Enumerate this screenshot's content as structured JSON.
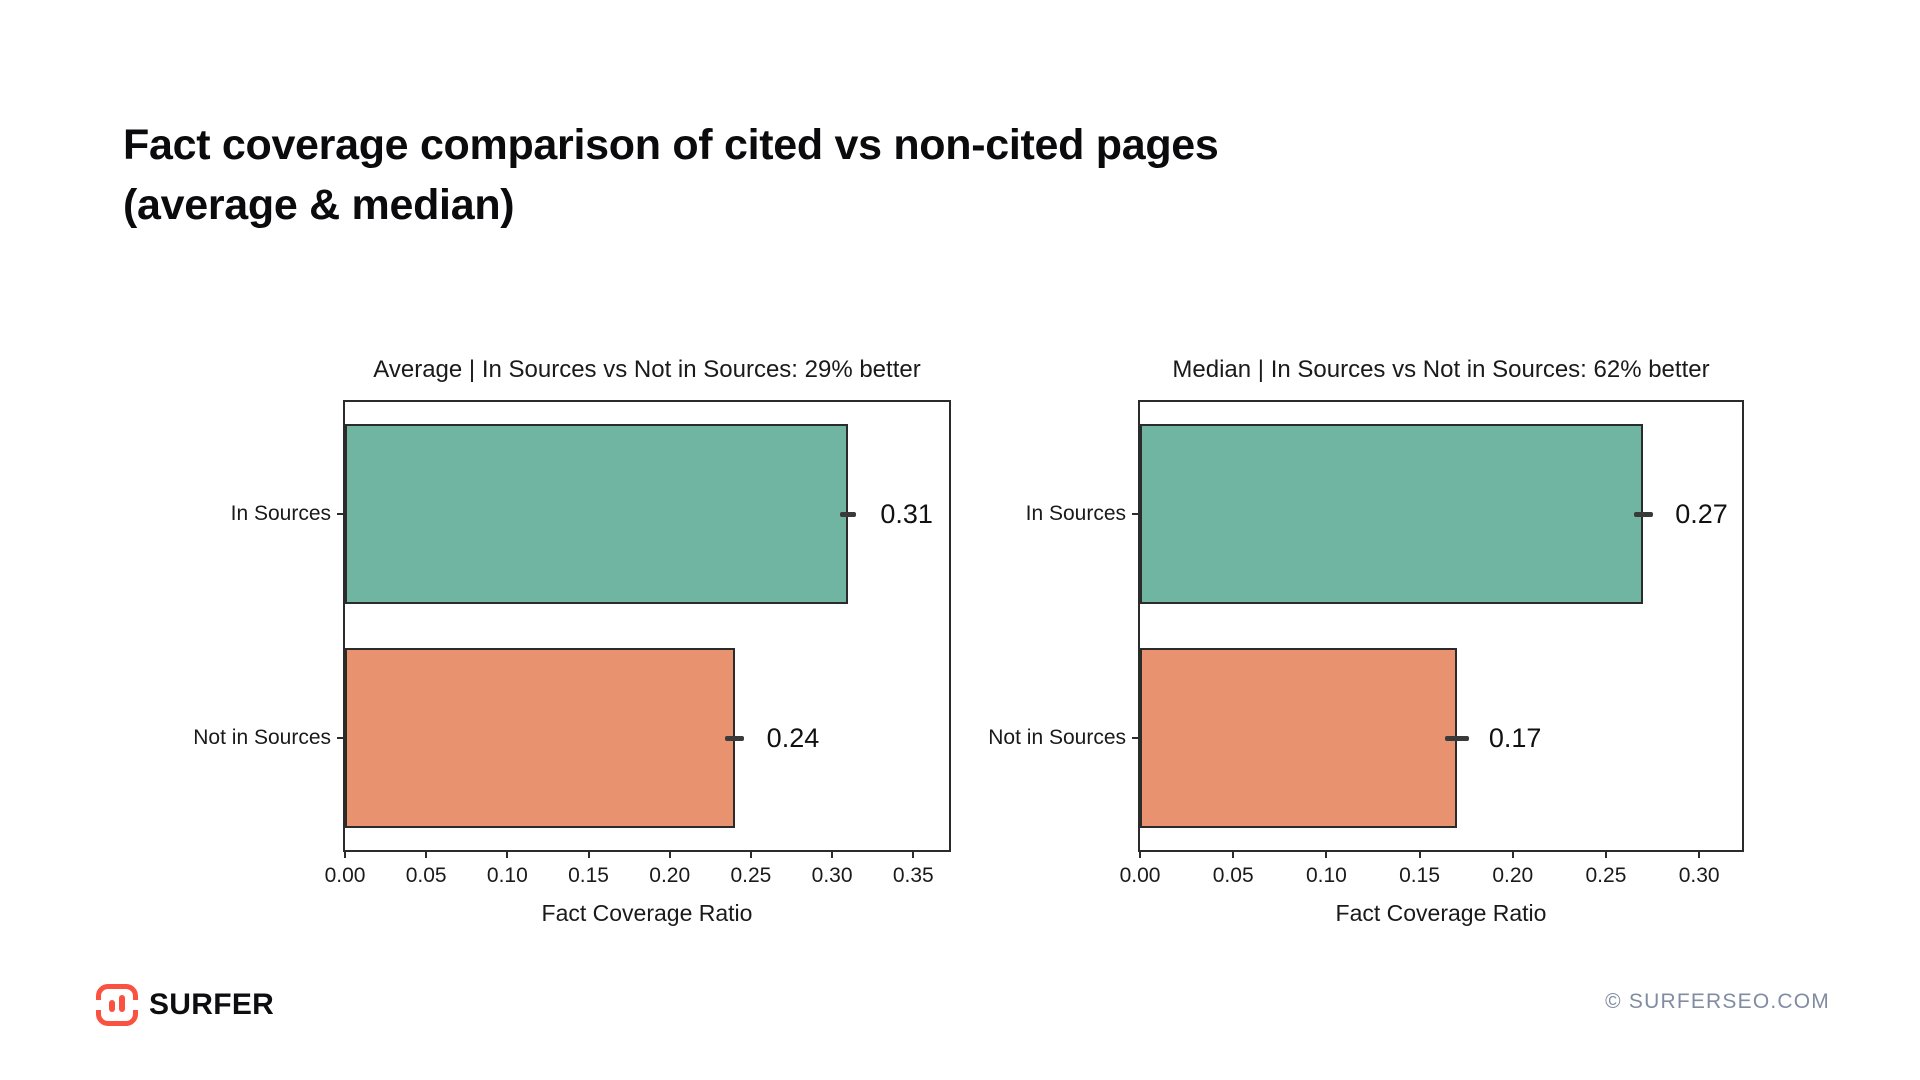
{
  "page": {
    "title_line1": "Fact coverage comparison of cited vs non-cited pages",
    "title_line2": "(average & median)"
  },
  "chart_data": [
    {
      "type": "bar",
      "orientation": "horizontal",
      "title": "Average | In Sources vs Not in Sources: 29% better",
      "categories": [
        "In Sources",
        "Not in Sources"
      ],
      "values": [
        0.31,
        0.24
      ],
      "errors": [
        0.005,
        0.006
      ],
      "value_labels": [
        "0.31",
        "0.24"
      ],
      "bar_colors": [
        "#70B5A2",
        "#E89270"
      ],
      "xlabel": "Fact Coverage Ratio",
      "xlim": [
        0,
        0.372
      ],
      "xticks": [
        0.0,
        0.05,
        0.1,
        0.15,
        0.2,
        0.25,
        0.3,
        0.35
      ],
      "xtick_labels": [
        "0.00",
        "0.05",
        "0.10",
        "0.15",
        "0.20",
        "0.25",
        "0.30",
        "0.35"
      ],
      "grid": false,
      "legend": false
    },
    {
      "type": "bar",
      "orientation": "horizontal",
      "title": "Median | In Sources vs Not in Sources: 62% better",
      "categories": [
        "In Sources",
        "Not in Sources"
      ],
      "values": [
        0.27,
        0.17
      ],
      "errors": [
        0.005,
        0.0065
      ],
      "value_labels": [
        "0.27",
        "0.17"
      ],
      "bar_colors": [
        "#70B5A2",
        "#E89270"
      ],
      "xlabel": "Fact Coverage Ratio",
      "xlim": [
        0,
        0.323
      ],
      "xticks": [
        0.0,
        0.05,
        0.1,
        0.15,
        0.2,
        0.25,
        0.3
      ],
      "xtick_labels": [
        "0.00",
        "0.05",
        "0.10",
        "0.15",
        "0.20",
        "0.25",
        "0.30"
      ],
      "grid": false,
      "legend": false
    }
  ],
  "footer": {
    "brand": "SURFER",
    "copyright": "© SURFERSEO.COM"
  },
  "colors": {
    "bar_green": "#70B5A2",
    "bar_orange": "#E89270",
    "bar_edge": "#2b2b2b",
    "axis": "#2b2b2b",
    "error_bar": "#3a3a3a",
    "chart_text": "#1a1a1a",
    "title_text": "#0b0b0d",
    "brand_coral": "#FB5140",
    "copyright_text": "#818CA2"
  }
}
